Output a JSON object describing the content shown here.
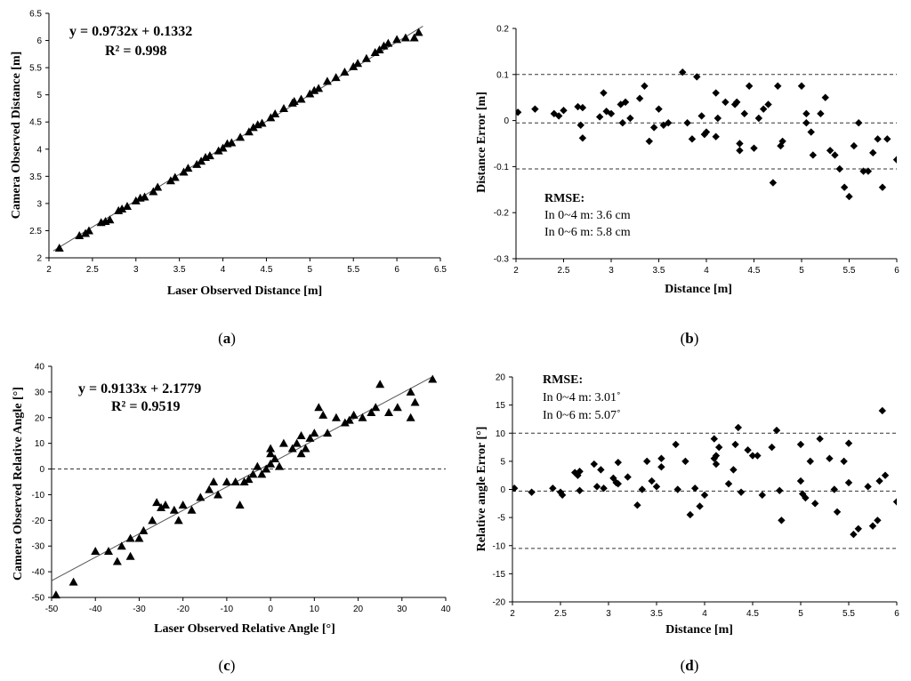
{
  "chart_data": [
    {
      "id": "a",
      "type": "scatter",
      "panel_label": "a",
      "marker": "triangle",
      "xlabel": "Laser Observed Distance [m]",
      "ylabel": "Camera Observed Distance [m]",
      "xlim": [
        2,
        6.5
      ],
      "ylim": [
        2,
        6.5
      ],
      "xticks": [
        "2",
        "2.5",
        "3",
        "3.5",
        "4",
        "4.5",
        "5",
        "5.5",
        "6",
        "6.5"
      ],
      "yticks": [
        "2",
        "2.5",
        "3",
        "3.5",
        "4",
        "4.5",
        "5",
        "5.5",
        "6",
        "6.5"
      ],
      "annotations": [
        "y = 0.9732x + 0.1332",
        "R² = 0.998"
      ],
      "trendline": {
        "slope": 0.9732,
        "intercept": 0.1332,
        "x_range": [
          2.05,
          6.3
        ]
      },
      "points": [
        [
          2.12,
          2.18
        ],
        [
          2.35,
          2.41
        ],
        [
          2.42,
          2.45
        ],
        [
          2.46,
          2.5
        ],
        [
          2.6,
          2.65
        ],
        [
          2.65,
          2.67
        ],
        [
          2.7,
          2.7
        ],
        [
          2.8,
          2.87
        ],
        [
          2.84,
          2.9
        ],
        [
          2.9,
          2.95
        ],
        [
          3.0,
          3.05
        ],
        [
          3.05,
          3.1
        ],
        [
          3.1,
          3.12
        ],
        [
          3.2,
          3.22
        ],
        [
          3.25,
          3.3
        ],
        [
          3.4,
          3.42
        ],
        [
          3.45,
          3.48
        ],
        [
          3.55,
          3.58
        ],
        [
          3.6,
          3.65
        ],
        [
          3.7,
          3.72
        ],
        [
          3.75,
          3.78
        ],
        [
          3.8,
          3.85
        ],
        [
          3.85,
          3.88
        ],
        [
          3.95,
          3.97
        ],
        [
          4.0,
          4.02
        ],
        [
          4.05,
          4.1
        ],
        [
          4.1,
          4.12
        ],
        [
          4.2,
          4.22
        ],
        [
          4.3,
          4.32
        ],
        [
          4.35,
          4.4
        ],
        [
          4.4,
          4.45
        ],
        [
          4.45,
          4.48
        ],
        [
          4.55,
          4.58
        ],
        [
          4.6,
          4.65
        ],
        [
          4.7,
          4.75
        ],
        [
          4.8,
          4.85
        ],
        [
          4.82,
          4.88
        ],
        [
          4.9,
          4.92
        ],
        [
          5.0,
          5.02
        ],
        [
          5.05,
          5.08
        ],
        [
          5.1,
          5.12
        ],
        [
          5.2,
          5.25
        ],
        [
          5.3,
          5.32
        ],
        [
          5.4,
          5.42
        ],
        [
          5.5,
          5.52
        ],
        [
          5.55,
          5.58
        ],
        [
          5.65,
          5.67
        ],
        [
          5.75,
          5.78
        ],
        [
          5.8,
          5.83
        ],
        [
          5.85,
          5.9
        ],
        [
          5.9,
          5.95
        ],
        [
          6.0,
          6.02
        ],
        [
          6.1,
          6.05
        ],
        [
          6.2,
          6.05
        ],
        [
          6.25,
          6.15
        ]
      ]
    },
    {
      "id": "b",
      "type": "scatter",
      "panel_label": "b",
      "marker": "diamond",
      "xlabel": "Distance [m]",
      "ylabel": "Distance Error [m]",
      "xlim": [
        2,
        6
      ],
      "ylim": [
        -0.3,
        0.2
      ],
      "xticks": [
        "2",
        "2.5",
        "3",
        "3.5",
        "4",
        "4.5",
        "5",
        "5.5",
        "6"
      ],
      "yticks": [
        "0.2",
        "0.1",
        "0",
        "-0.1",
        "-0.2",
        "-0.3"
      ],
      "reference_lines": [
        0.1,
        -0.005,
        -0.105
      ],
      "annotations": [
        "RMSE:",
        "In 0~4 m: 3.6 cm",
        "In 0~6 m: 5.8 cm"
      ],
      "points": [
        [
          2.02,
          0.018
        ],
        [
          2.2,
          0.025
        ],
        [
          2.4,
          0.015
        ],
        [
          2.45,
          0.01
        ],
        [
          2.5,
          0.022
        ],
        [
          2.65,
          0.03
        ],
        [
          2.68,
          -0.01
        ],
        [
          2.7,
          0.028
        ],
        [
          2.7,
          -0.038
        ],
        [
          2.88,
          0.008
        ],
        [
          2.92,
          0.06
        ],
        [
          2.95,
          0.02
        ],
        [
          3.0,
          0.015
        ],
        [
          3.1,
          0.035
        ],
        [
          3.12,
          -0.005
        ],
        [
          3.15,
          0.04
        ],
        [
          3.2,
          0.005
        ],
        [
          3.3,
          0.048
        ],
        [
          3.35,
          0.075
        ],
        [
          3.4,
          -0.045
        ],
        [
          3.45,
          -0.015
        ],
        [
          3.5,
          0.025
        ],
        [
          3.55,
          -0.01
        ],
        [
          3.6,
          -0.005
        ],
        [
          3.75,
          0.105
        ],
        [
          3.8,
          -0.005
        ],
        [
          3.85,
          -0.04
        ],
        [
          3.9,
          0.095
        ],
        [
          3.95,
          0.01
        ],
        [
          3.98,
          -0.03
        ],
        [
          4.0,
          -0.025
        ],
        [
          4.1,
          0.06
        ],
        [
          4.1,
          -0.035
        ],
        [
          4.12,
          0.005
        ],
        [
          4.2,
          0.04
        ],
        [
          4.3,
          0.035
        ],
        [
          4.32,
          0.04
        ],
        [
          4.35,
          -0.05
        ],
        [
          4.35,
          -0.065
        ],
        [
          4.4,
          0.015
        ],
        [
          4.45,
          0.075
        ],
        [
          4.5,
          -0.06
        ],
        [
          4.55,
          0.005
        ],
        [
          4.6,
          0.025
        ],
        [
          4.65,
          0.035
        ],
        [
          4.7,
          -0.135
        ],
        [
          4.75,
          0.075
        ],
        [
          4.78,
          -0.055
        ],
        [
          4.8,
          -0.045
        ],
        [
          5.0,
          0.075
        ],
        [
          5.05,
          0.015
        ],
        [
          5.05,
          -0.005
        ],
        [
          5.1,
          -0.025
        ],
        [
          5.12,
          -0.075
        ],
        [
          5.2,
          0.015
        ],
        [
          5.25,
          0.05
        ],
        [
          5.3,
          -0.065
        ],
        [
          5.35,
          -0.075
        ],
        [
          5.4,
          -0.105
        ],
        [
          5.45,
          -0.145
        ],
        [
          5.5,
          -0.165
        ],
        [
          5.55,
          -0.055
        ],
        [
          5.6,
          -0.005
        ],
        [
          5.65,
          -0.11
        ],
        [
          5.7,
          -0.11
        ],
        [
          5.75,
          -0.07
        ],
        [
          5.8,
          -0.04
        ],
        [
          5.85,
          -0.145
        ],
        [
          5.9,
          -0.04
        ],
        [
          6.0,
          -0.085
        ]
      ]
    },
    {
      "id": "c",
      "type": "scatter",
      "panel_label": "c",
      "marker": "triangle",
      "xlabel": "Laser Observed Relative Angle [°]",
      "ylabel": "Camera Observed Relative Angle [°]",
      "xlim": [
        -50,
        40
      ],
      "ylim": [
        -50,
        40
      ],
      "xticks": [
        "-50",
        "-40",
        "-30",
        "-20",
        "-10",
        "0",
        "10",
        "20",
        "30",
        "40"
      ],
      "yticks": [
        "40",
        "30",
        "20",
        "10",
        "0",
        "-10",
        "-20",
        "-30",
        "-40",
        "-50"
      ],
      "reference_lines": [
        0
      ],
      "annotations": [
        "y = 0.9133x + 2.1779",
        "R² = 0.9519"
      ],
      "trendline": {
        "slope": 0.9133,
        "intercept": 2.1779,
        "x_range": [
          -50,
          37
        ]
      },
      "points": [
        [
          -49,
          -49
        ],
        [
          -45,
          -44
        ],
        [
          -40,
          -32
        ],
        [
          -37,
          -32
        ],
        [
          -35,
          -36
        ],
        [
          -34,
          -30
        ],
        [
          -32,
          -27
        ],
        [
          -32,
          -34
        ],
        [
          -30,
          -27
        ],
        [
          -29,
          -24
        ],
        [
          -27,
          -20
        ],
        [
          -26,
          -13
        ],
        [
          -25,
          -15
        ],
        [
          -24,
          -14
        ],
        [
          -22,
          -16
        ],
        [
          -21,
          -20
        ],
        [
          -20,
          -14
        ],
        [
          -18,
          -16
        ],
        [
          -16,
          -11
        ],
        [
          -14,
          -8
        ],
        [
          -13,
          -5
        ],
        [
          -12,
          -10
        ],
        [
          -10,
          -5
        ],
        [
          -8,
          -5
        ],
        [
          -7,
          -14
        ],
        [
          -6,
          -5
        ],
        [
          -5,
          -4
        ],
        [
          -4,
          -2
        ],
        [
          -3,
          1
        ],
        [
          -2,
          -2
        ],
        [
          -1,
          0
        ],
        [
          0,
          2
        ],
        [
          0,
          6
        ],
        [
          0,
          8
        ],
        [
          1,
          4
        ],
        [
          2,
          1
        ],
        [
          3,
          10
        ],
        [
          5,
          8
        ],
        [
          6,
          10
        ],
        [
          7,
          13
        ],
        [
          7,
          6
        ],
        [
          8,
          8
        ],
        [
          9,
          12
        ],
        [
          10,
          14
        ],
        [
          11,
          24
        ],
        [
          12,
          21
        ],
        [
          13,
          14
        ],
        [
          15,
          20
        ],
        [
          17,
          18
        ],
        [
          18,
          19
        ],
        [
          19,
          21
        ],
        [
          21,
          20
        ],
        [
          23,
          22
        ],
        [
          24,
          24
        ],
        [
          25,
          33
        ],
        [
          27,
          22
        ],
        [
          29,
          24
        ],
        [
          32,
          20
        ],
        [
          32,
          30
        ],
        [
          33,
          26
        ],
        [
          37,
          35
        ]
      ]
    },
    {
      "id": "d",
      "type": "scatter",
      "panel_label": "d",
      "marker": "diamond",
      "xlabel": "Distance [m]",
      "ylabel": "Relative angle Error [°]",
      "xlim": [
        2,
        6
      ],
      "ylim": [
        -20,
        20
      ],
      "xticks": [
        "2",
        "2.5",
        "3",
        "3.5",
        "4",
        "4.5",
        "5",
        "5.5",
        "6"
      ],
      "yticks": [
        "20",
        "15",
        "10",
        "5",
        "0",
        "-5",
        "-10",
        "-15",
        "-20"
      ],
      "reference_lines": [
        10,
        -0.3,
        -10.5
      ],
      "annotations": [
        "RMSE:",
        "In 0~4 m: 3.01˚",
        "In 0~6 m: 5.07˚"
      ],
      "points": [
        [
          2.02,
          0.2
        ],
        [
          2.2,
          -0.5
        ],
        [
          2.42,
          0.2
        ],
        [
          2.5,
          -0.5
        ],
        [
          2.52,
          -1.0
        ],
        [
          2.65,
          3
        ],
        [
          2.68,
          2.5
        ],
        [
          2.7,
          3.2
        ],
        [
          2.7,
          -0.2
        ],
        [
          2.85,
          4.5
        ],
        [
          2.88,
          0.5
        ],
        [
          2.92,
          3.5
        ],
        [
          2.95,
          0.2
        ],
        [
          3.05,
          2
        ],
        [
          3.08,
          1.2
        ],
        [
          3.1,
          4.8
        ],
        [
          3.1,
          1.0
        ],
        [
          3.2,
          2.2
        ],
        [
          3.3,
          -2.8
        ],
        [
          3.35,
          0
        ],
        [
          3.4,
          5
        ],
        [
          3.45,
          1.5
        ],
        [
          3.5,
          0.5
        ],
        [
          3.55,
          4.0
        ],
        [
          3.55,
          5.5
        ],
        [
          3.7,
          8
        ],
        [
          3.72,
          0
        ],
        [
          3.8,
          5
        ],
        [
          3.85,
          -4.5
        ],
        [
          3.9,
          0.2
        ],
        [
          3.95,
          -3
        ],
        [
          4.0,
          -1
        ],
        [
          4.1,
          9
        ],
        [
          4.1,
          5.5
        ],
        [
          4.12,
          6
        ],
        [
          4.12,
          4.5
        ],
        [
          4.15,
          7.5
        ],
        [
          4.25,
          1
        ],
        [
          4.3,
          3.5
        ],
        [
          4.32,
          8
        ],
        [
          4.35,
          11
        ],
        [
          4.38,
          -0.5
        ],
        [
          4.45,
          7
        ],
        [
          4.5,
          6
        ],
        [
          4.55,
          6
        ],
        [
          4.6,
          -1
        ],
        [
          4.7,
          7.5
        ],
        [
          4.75,
          10.5
        ],
        [
          4.78,
          -0.2
        ],
        [
          4.8,
          -5.5
        ],
        [
          5.0,
          8
        ],
        [
          5.0,
          1.5
        ],
        [
          5.02,
          -0.8
        ],
        [
          5.05,
          -1.5
        ],
        [
          5.1,
          5
        ],
        [
          5.15,
          -2.5
        ],
        [
          5.2,
          9
        ],
        [
          5.3,
          5.5
        ],
        [
          5.35,
          0
        ],
        [
          5.38,
          -4
        ],
        [
          5.45,
          5
        ],
        [
          5.5,
          1.2
        ],
        [
          5.5,
          8.2
        ],
        [
          5.55,
          -8
        ],
        [
          5.6,
          -7
        ],
        [
          5.7,
          0.5
        ],
        [
          5.75,
          -6.5
        ],
        [
          5.8,
          -5.5
        ],
        [
          5.82,
          1.5
        ],
        [
          5.85,
          14
        ],
        [
          5.88,
          2.5
        ],
        [
          6.0,
          -2.2
        ]
      ]
    }
  ]
}
